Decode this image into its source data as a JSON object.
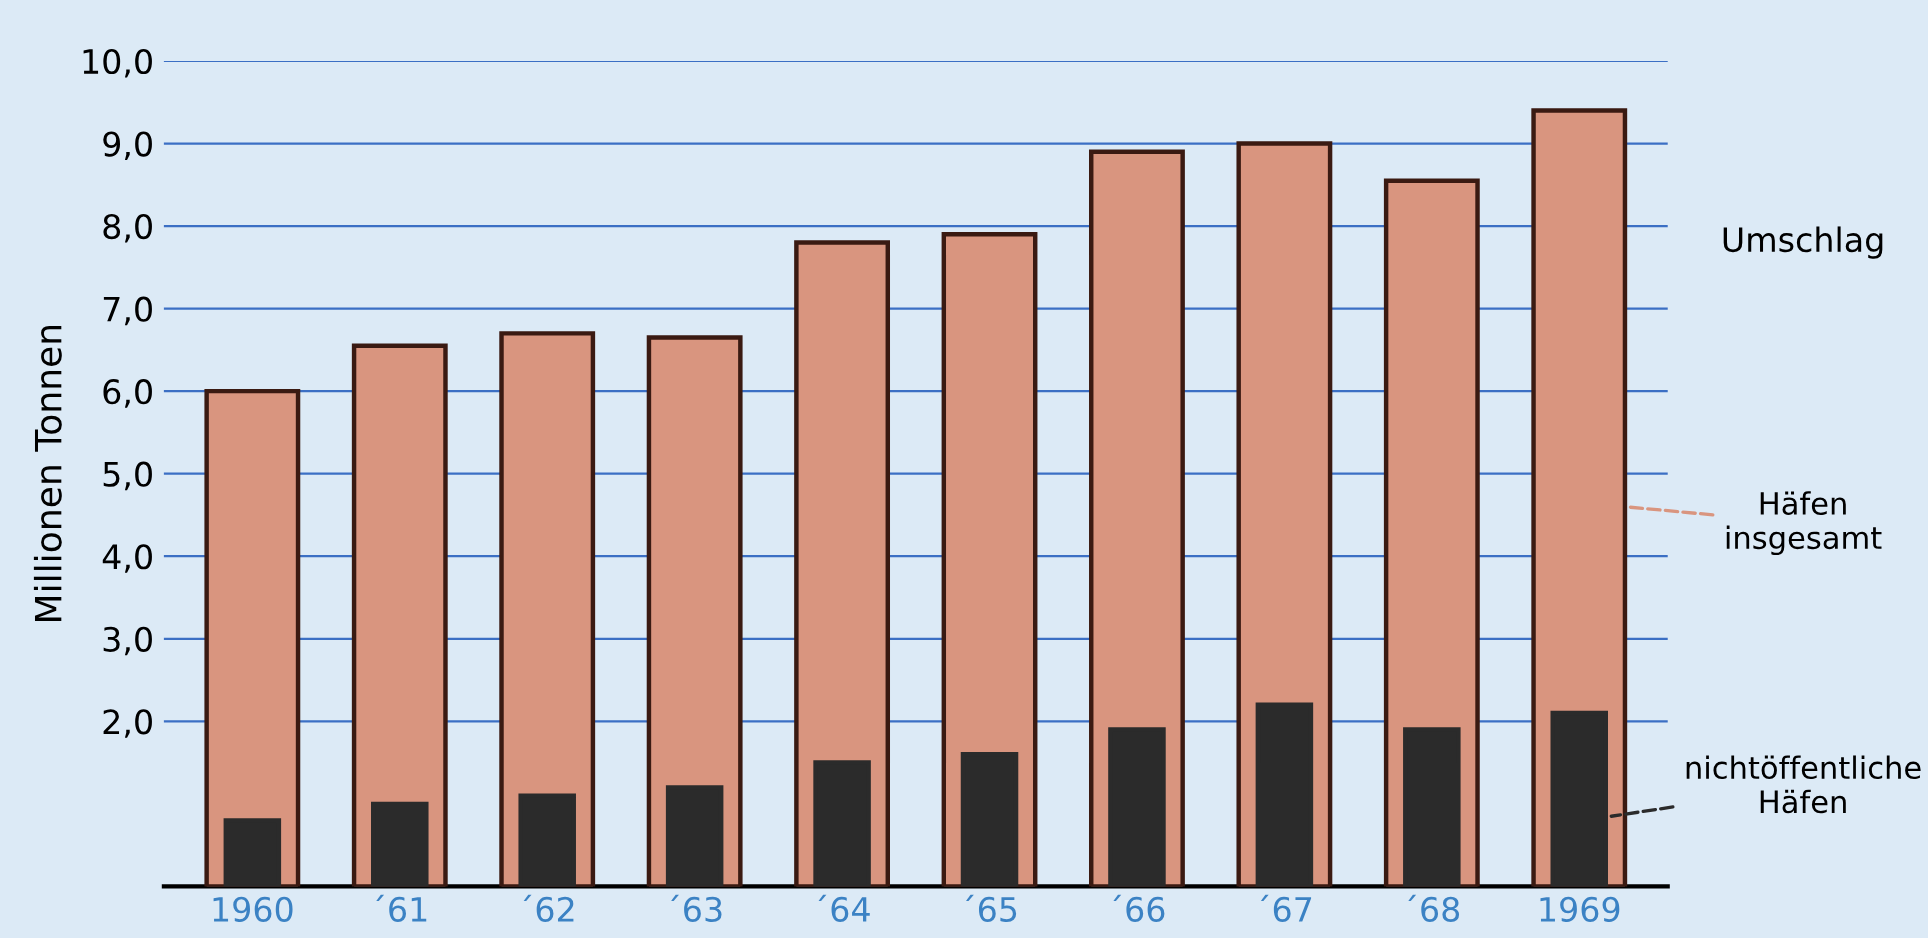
{
  "chart_data": {
    "type": "bar",
    "ylabel": "Millionen Tonnen",
    "annotations": [
      "Umschlag"
    ],
    "categories": [
      "1960",
      "´61",
      "´62",
      "´63",
      "´64",
      "´65",
      "´66",
      "´67",
      "´68",
      "1969"
    ],
    "series": [
      {
        "name": "Häfen insgesamt",
        "color": "#d9957f",
        "values": [
          6.0,
          6.55,
          6.7,
          6.65,
          7.8,
          7.9,
          8.9,
          9.0,
          8.55,
          9.4
        ]
      },
      {
        "name": "nichtöffentliche Häfen",
        "color": "#2b2b2b",
        "values": [
          0.8,
          1.0,
          1.1,
          1.2,
          1.5,
          1.6,
          1.9,
          2.2,
          1.9,
          2.1
        ]
      }
    ],
    "ylim": [
      0,
      10
    ],
    "yticks": [
      {
        "value": 2,
        "label": "2,0"
      },
      {
        "value": 3,
        "label": "3,0"
      },
      {
        "value": 4,
        "label": "4,0"
      },
      {
        "value": 5,
        "label": "5,0"
      },
      {
        "value": 6,
        "label": "6,0"
      },
      {
        "value": 7,
        "label": "7,0"
      },
      {
        "value": 8,
        "label": "8,0"
      },
      {
        "value": 9,
        "label": "9,0"
      },
      {
        "value": 10,
        "label": "10,0"
      }
    ],
    "grid": "y",
    "legend": "right"
  }
}
